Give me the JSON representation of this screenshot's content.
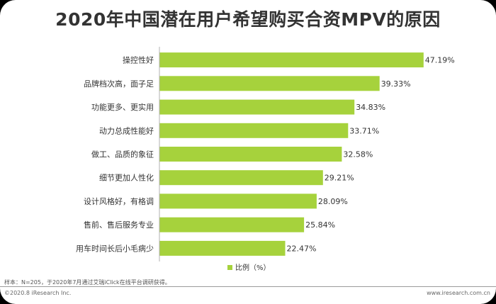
{
  "page": {
    "title": "2020年中国潜在用户希望购买合资MPV的原因",
    "source_note": "样本：N=205，于2020年7月通过艾瑞iClick在线平台调研获得。",
    "copyright": "©2020.8 iResearch Inc.",
    "website": "www.iresearch.com.cn"
  },
  "chart_data": {
    "type": "bar",
    "orientation": "horizontal",
    "categories": [
      "操控性好",
      "品牌档次高，面子足",
      "功能更多、更实用",
      "动力总成性能好",
      "做工、品质的象征",
      "细节更加人性化",
      "设计风格好，有格调",
      "售前、售后服务专业",
      "用车时间长后小毛病少"
    ],
    "series": [
      {
        "name": "比例（%）",
        "values": [
          47.19,
          39.33,
          34.83,
          33.71,
          32.58,
          29.21,
          28.09,
          25.84,
          22.47
        ],
        "labels": [
          "47.19%",
          "39.33%",
          "34.83%",
          "33.71%",
          "32.58%",
          "29.21%",
          "28.09%",
          "25.84%",
          "22.47%"
        ],
        "color": "#a6d23c"
      }
    ],
    "xlim": [
      0,
      50
    ],
    "grid": false,
    "legend": "bottom-center"
  }
}
